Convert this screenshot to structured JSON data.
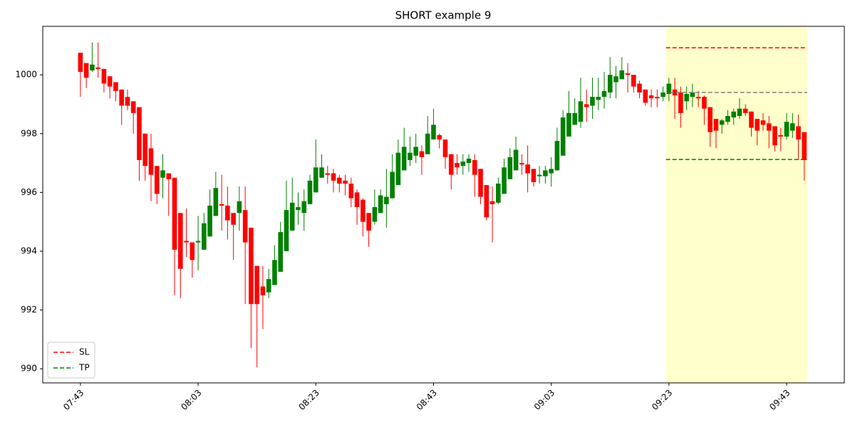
{
  "chart_data": {
    "type": "candlestick",
    "title": "SHORT example 9",
    "x": [
      "07:43",
      "07:44",
      "07:45",
      "07:46",
      "07:47",
      "07:48",
      "07:49",
      "07:50",
      "07:51",
      "07:52",
      "07:53",
      "07:54",
      "07:55",
      "07:56",
      "07:57",
      "07:58",
      "07:59",
      "08:00",
      "08:01",
      "08:02",
      "08:03",
      "08:04",
      "08:05",
      "08:06",
      "08:07",
      "08:08",
      "08:09",
      "08:10",
      "08:11",
      "08:12",
      "08:13",
      "08:14",
      "08:15",
      "08:16",
      "08:17",
      "08:18",
      "08:19",
      "08:20",
      "08:21",
      "08:22",
      "08:23",
      "08:24",
      "08:25",
      "08:26",
      "08:27",
      "08:28",
      "08:29",
      "08:30",
      "08:31",
      "08:32",
      "08:33",
      "08:34",
      "08:35",
      "08:36",
      "08:37",
      "08:38",
      "08:39",
      "08:40",
      "08:41",
      "08:42",
      "08:43",
      "08:44",
      "08:45",
      "08:46",
      "08:47",
      "08:48",
      "08:49",
      "08:50",
      "08:51",
      "08:52",
      "08:53",
      "08:54",
      "08:55",
      "08:56",
      "08:57",
      "08:58",
      "08:59",
      "09:00",
      "09:01",
      "09:02",
      "09:03",
      "09:04",
      "09:05",
      "09:06",
      "09:07",
      "09:08",
      "09:09",
      "09:10",
      "09:11",
      "09:12",
      "09:13",
      "09:14",
      "09:15",
      "09:16",
      "09:17",
      "09:18",
      "09:19",
      "09:20",
      "09:21",
      "09:22",
      "09:23",
      "09:24",
      "09:25",
      "09:26",
      "09:27",
      "09:28",
      "09:29",
      "09:30",
      "09:31",
      "09:32",
      "09:33",
      "09:34",
      "09:35",
      "09:36",
      "09:37",
      "09:38",
      "09:39",
      "09:40",
      "09:41",
      "09:42",
      "09:43",
      "09:44",
      "09:45",
      "09:46"
    ],
    "open": [
      1000.75,
      1000.4,
      1000.15,
      1000.25,
      1000.2,
      999.95,
      999.75,
      999.5,
      999.25,
      999.1,
      998.9,
      998.0,
      997.5,
      996.9,
      996.5,
      996.65,
      996.5,
      995.3,
      994.35,
      994.3,
      994.3,
      994.05,
      994.5,
      995.2,
      995.6,
      995.55,
      995.3,
      995.3,
      995.4,
      994.8,
      993.5,
      992.8,
      992.6,
      992.85,
      993.3,
      994.0,
      994.7,
      995.4,
      995.3,
      995.6,
      996.0,
      996.5,
      996.65,
      996.65,
      996.5,
      996.4,
      996.3,
      996.0,
      995.75,
      995.3,
      995.0,
      995.3,
      995.6,
      995.8,
      996.25,
      996.75,
      997.1,
      997.25,
      997.4,
      997.3,
      997.8,
      997.95,
      997.8,
      997.3,
      997.0,
      996.9,
      997.0,
      997.1,
      996.8,
      996.25,
      995.7,
      995.65,
      995.95,
      996.45,
      996.75,
      997.0,
      996.95,
      996.8,
      996.55,
      996.55,
      996.65,
      996.75,
      997.25,
      997.9,
      998.3,
      998.4,
      999.0,
      998.95,
      999.15,
      999.25,
      999.4,
      999.75,
      999.85,
      1000.05,
      1000.0,
      999.7,
      999.5,
      999.3,
      999.25,
      999.25,
      999.35,
      999.5,
      999.4,
      999.1,
      999.25,
      999.25,
      999.25,
      998.9,
      998.5,
      998.3,
      998.4,
      998.55,
      998.6,
      998.85,
      998.75,
      998.5,
      998.45,
      998.35,
      998.25,
      997.95,
      997.9,
      998.1,
      998.25,
      998.05
    ],
    "high": [
      1000.75,
      1000.4,
      1001.1,
      1001.1,
      1000.2,
      999.95,
      999.75,
      999.5,
      999.5,
      999.1,
      998.9,
      998.0,
      998.0,
      996.9,
      997.3,
      996.65,
      996.5,
      995.3,
      995.45,
      994.3,
      995.2,
      995.3,
      996.1,
      996.7,
      996.6,
      996.2,
      995.3,
      996.2,
      996.2,
      994.8,
      993.5,
      993.5,
      993.4,
      994.2,
      995.0,
      996.4,
      996.5,
      996.0,
      996.1,
      996.6,
      997.8,
      997.3,
      996.9,
      996.8,
      996.6,
      996.6,
      996.5,
      996.1,
      995.8,
      995.3,
      996.1,
      996.1,
      996.8,
      997.3,
      997.8,
      998.2,
      997.9,
      998.0,
      997.6,
      998.6,
      998.85,
      998.0,
      997.8,
      997.3,
      997.3,
      997.3,
      997.3,
      997.3,
      996.8,
      996.25,
      996.2,
      996.5,
      997.15,
      997.5,
      997.9,
      997.3,
      997.6,
      996.8,
      996.9,
      996.9,
      997.2,
      998.2,
      998.8,
      999.45,
      999.2,
      999.9,
      999.5,
      999.9,
      999.9,
      1000.1,
      1000.6,
      1000.3,
      1000.6,
      1000.4,
      1000.0,
      999.8,
      999.5,
      999.5,
      999.5,
      999.6,
      999.9,
      999.9,
      999.6,
      999.6,
      999.7,
      999.45,
      999.3,
      998.9,
      998.5,
      998.5,
      998.8,
      998.85,
      999.2,
      999.0,
      998.75,
      998.5,
      998.7,
      998.6,
      998.25,
      998.2,
      998.7,
      998.7,
      998.65,
      998.05
    ],
    "low": [
      999.25,
      999.55,
      1000.1,
      999.9,
      999.4,
      999.2,
      999.1,
      998.3,
      998.8,
      998.0,
      996.4,
      996.4,
      995.7,
      995.6,
      995.8,
      995.2,
      992.5,
      992.4,
      993.8,
      993.1,
      993.35,
      994.05,
      994.5,
      995.2,
      994.7,
      994.4,
      993.7,
      994.7,
      992.2,
      990.7,
      990.05,
      991.35,
      992.4,
      992.85,
      993.3,
      994.0,
      994.7,
      994.9,
      994.7,
      995.6,
      996.0,
      996.5,
      996.3,
      996.0,
      996.0,
      995.9,
      995.5,
      994.9,
      994.5,
      994.15,
      994.9,
      995.3,
      994.8,
      995.8,
      996.25,
      996.75,
      996.9,
      997.0,
      996.6,
      997.3,
      997.8,
      997.5,
      996.8,
      996.1,
      996.6,
      996.6,
      996.7,
      995.85,
      995.6,
      995.05,
      994.3,
      995.6,
      995.95,
      996.45,
      996.75,
      996.6,
      996.0,
      996.2,
      996.3,
      996.3,
      996.2,
      996.75,
      997.25,
      997.9,
      998.3,
      998.2,
      998.4,
      998.5,
      998.8,
      998.85,
      999.2,
      999.2,
      999.85,
      999.4,
      999.4,
      999.2,
      998.95,
      998.9,
      998.9,
      999.1,
      999.1,
      998.5,
      998.2,
      998.8,
      998.9,
      998.9,
      998.3,
      997.55,
      997.5,
      998.0,
      998.3,
      998.3,
      998.5,
      998.6,
      997.9,
      997.6,
      998.1,
      997.5,
      997.4,
      997.4,
      997.8,
      997.85,
      997.1,
      996.4
    ],
    "close": [
      1000.1,
      999.9,
      1000.35,
      1000.2,
      999.7,
      999.6,
      999.45,
      998.95,
      998.95,
      998.7,
      997.1,
      996.9,
      996.6,
      995.95,
      996.75,
      996.45,
      994.05,
      993.4,
      994.3,
      993.7,
      994.35,
      994.95,
      995.55,
      996.15,
      995.55,
      995.05,
      994.9,
      995.7,
      994.3,
      992.2,
      992.2,
      992.5,
      993.05,
      993.7,
      994.65,
      995.4,
      995.65,
      995.5,
      995.7,
      996.4,
      996.85,
      996.85,
      996.6,
      996.4,
      996.3,
      996.3,
      995.8,
      995.5,
      995.0,
      994.7,
      995.5,
      995.9,
      995.85,
      996.7,
      997.35,
      997.55,
      997.35,
      997.55,
      997.2,
      998.0,
      998.3,
      997.8,
      997.2,
      996.6,
      996.85,
      997.05,
      997.15,
      996.6,
      995.85,
      995.15,
      995.6,
      996.3,
      996.85,
      997.2,
      997.45,
      996.95,
      996.65,
      996.35,
      996.6,
      996.75,
      996.8,
      997.75,
      998.55,
      998.7,
      998.7,
      999.1,
      998.9,
      999.25,
      999.25,
      999.45,
      1000.0,
      999.95,
      1000.15,
      1000.0,
      999.6,
      999.4,
      999.05,
      999.2,
      999.2,
      999.4,
      999.7,
      999.3,
      998.7,
      999.35,
      999.4,
      999.2,
      998.85,
      998.05,
      998.1,
      998.45,
      998.6,
      998.75,
      998.85,
      998.7,
      998.2,
      998.1,
      998.3,
      998.1,
      997.6,
      997.9,
      998.4,
      998.35,
      997.8,
      997.1
    ],
    "up_color": "green",
    "down_color": "red",
    "xlim": [
      "07:36:36",
      "09:52:48"
    ],
    "xticks": [
      "07:43",
      "08:03",
      "08:23",
      "08:43",
      "09:03",
      "09:23",
      "09:43"
    ],
    "ylim": [
      989.52,
      1001.65
    ],
    "yticks": [
      990,
      992,
      994,
      996,
      998,
      1000
    ],
    "highlight": {
      "start": "09:23",
      "end": "09:46",
      "color": "#ffffcc"
    },
    "entry_line": {
      "value": 999.4,
      "color": "gray"
    },
    "levels": [
      {
        "name": "SL",
        "color": "red",
        "value": 1000.92
      },
      {
        "name": "TP",
        "color": "green",
        "value": 997.12
      }
    ],
    "legend": "lower left"
  }
}
